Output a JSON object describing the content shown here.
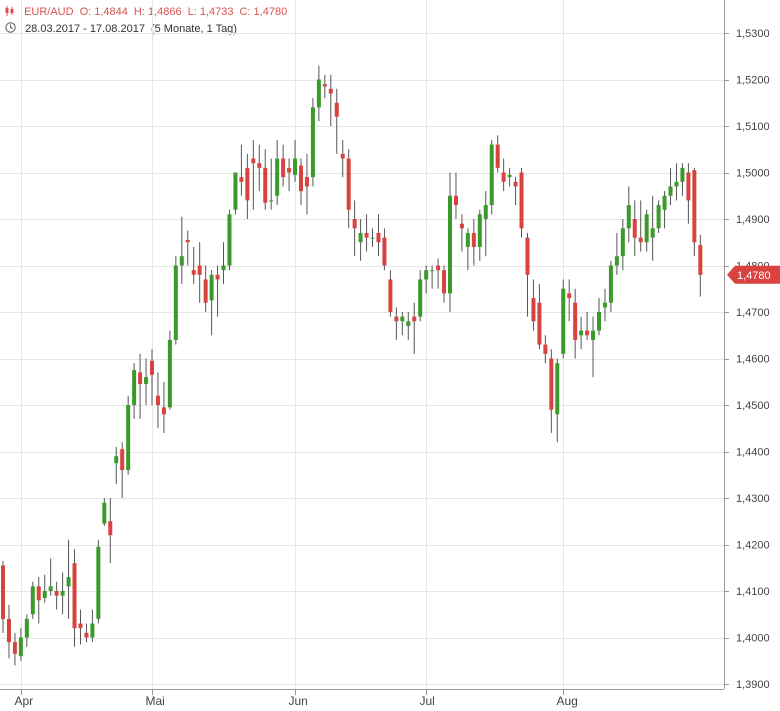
{
  "header": {
    "symbol": "EUR/AUD",
    "open": "O: 1,4844",
    "high": "H: 1,4866",
    "low": "L: 1,4733",
    "close": "C: 1,4780",
    "range": "28.03.2017 - 17.08.2017",
    "period": "(5 Monate, 1 Tag)"
  },
  "colors": {
    "up": "#3a9a2a",
    "down": "#d9423f",
    "grid": "#e6e6e6",
    "axis": "#999999"
  },
  "chart_data": {
    "type": "candlestick",
    "x_range": [
      "28.03.2017",
      "17.08.2017"
    ],
    "ylim": [
      1.387,
      1.533
    ],
    "y_ticks": [
      1.39,
      1.4,
      1.41,
      1.42,
      1.43,
      1.44,
      1.45,
      1.46,
      1.47,
      1.48,
      1.49,
      1.5,
      1.51,
      1.52,
      1.53
    ],
    "y_tick_labels": [
      "1,3900",
      "1,4000",
      "1,4100",
      "1,4200",
      "1,4300",
      "1,4400",
      "1,4500",
      "1,4600",
      "1,4700",
      "1,4800",
      "1,4900",
      "1,5000",
      "1,5100",
      "1,5200",
      "1,5300"
    ],
    "x_tick_labels": [
      {
        "label": "Apr",
        "index": 3
      },
      {
        "label": "Mai",
        "index": 25
      },
      {
        "label": "Jun",
        "index": 49
      },
      {
        "label": "Jul",
        "index": 71
      },
      {
        "label": "Aug",
        "index": 94
      }
    ],
    "last_value_label": "1,4780",
    "last_value": 1.478,
    "candles": [
      [
        1.4155,
        1.4165,
        1.401,
        1.404
      ],
      [
        1.404,
        1.407,
        1.3955,
        1.399
      ],
      [
        1.399,
        1.401,
        1.394,
        1.3965
      ],
      [
        1.396,
        1.402,
        1.395,
        1.4
      ],
      [
        1.4,
        1.405,
        1.398,
        1.404
      ],
      [
        1.405,
        1.412,
        1.404,
        1.411
      ],
      [
        1.411,
        1.413,
        1.403,
        1.408
      ],
      [
        1.4085,
        1.4135,
        1.4075,
        1.41
      ],
      [
        1.41,
        1.417,
        1.409,
        1.411
      ],
      [
        1.41,
        1.412,
        1.406,
        1.409
      ],
      [
        1.409,
        1.414,
        1.405,
        1.41
      ],
      [
        1.411,
        1.421,
        1.404,
        1.413
      ],
      [
        1.416,
        1.419,
        1.398,
        1.402
      ],
      [
        1.403,
        1.406,
        1.3985,
        1.402
      ],
      [
        1.401,
        1.403,
        1.399,
        1.4
      ],
      [
        1.4,
        1.406,
        1.399,
        1.403
      ],
      [
        1.404,
        1.421,
        1.403,
        1.4195
      ],
      [
        1.4245,
        1.43,
        1.424,
        1.429
      ],
      [
        1.425,
        1.43,
        1.416,
        1.422
      ],
      [
        1.4375,
        1.441,
        1.433,
        1.439
      ],
      [
        1.4405,
        1.442,
        1.43,
        1.436
      ],
      [
        1.436,
        1.452,
        1.435,
        1.45
      ],
      [
        1.45,
        1.459,
        1.447,
        1.4575
      ],
      [
        1.457,
        1.461,
        1.447,
        1.4545
      ],
      [
        1.4545,
        1.46,
        1.45,
        1.456
      ],
      [
        1.4595,
        1.462,
        1.45,
        1.4565
      ],
      [
        1.452,
        1.457,
        1.445,
        1.45
      ],
      [
        1.4495,
        1.455,
        1.444,
        1.448
      ],
      [
        1.4495,
        1.466,
        1.449,
        1.464
      ],
      [
        1.464,
        1.482,
        1.463,
        1.48
      ],
      [
        1.48,
        1.4905,
        1.476,
        1.482
      ],
      [
        1.4855,
        1.4875,
        1.48,
        1.485
      ],
      [
        1.479,
        1.484,
        1.476,
        1.478
      ],
      [
        1.48,
        1.485,
        1.472,
        1.478
      ],
      [
        1.477,
        1.48,
        1.47,
        1.472
      ],
      [
        1.4725,
        1.479,
        1.465,
        1.478
      ],
      [
        1.478,
        1.48,
        1.469,
        1.477
      ],
      [
        1.479,
        1.485,
        1.476,
        1.48
      ],
      [
        1.48,
        1.492,
        1.479,
        1.491
      ],
      [
        1.492,
        1.5,
        1.491,
        1.5
      ],
      [
        1.499,
        1.506,
        1.495,
        1.498
      ],
      [
        1.501,
        1.504,
        1.49,
        1.494
      ],
      [
        1.503,
        1.507,
        1.492,
        1.502
      ],
      [
        1.502,
        1.506,
        1.496,
        1.501
      ],
      [
        1.501,
        1.505,
        1.492,
        1.4935
      ],
      [
        1.494,
        1.503,
        1.492,
        1.494
      ],
      [
        1.495,
        1.507,
        1.493,
        1.503
      ],
      [
        1.503,
        1.506,
        1.497,
        1.499
      ],
      [
        1.501,
        1.503,
        1.496,
        1.5
      ],
      [
        1.4995,
        1.507,
        1.498,
        1.503
      ],
      [
        1.5015,
        1.503,
        1.493,
        1.496
      ],
      [
        1.499,
        1.504,
        1.491,
        1.497
      ],
      [
        1.499,
        1.516,
        1.497,
        1.514
      ],
      [
        1.514,
        1.523,
        1.511,
        1.52
      ],
      [
        1.519,
        1.521,
        1.516,
        1.5185
      ],
      [
        1.518,
        1.521,
        1.51,
        1.517
      ],
      [
        1.515,
        1.518,
        1.504,
        1.512
      ],
      [
        1.504,
        1.507,
        1.499,
        1.503
      ],
      [
        1.503,
        1.505,
        1.488,
        1.492
      ],
      [
        1.49,
        1.494,
        1.482,
        1.488
      ],
      [
        1.485,
        1.49,
        1.481,
        1.487
      ],
      [
        1.487,
        1.491,
        1.483,
        1.486
      ],
      [
        1.486,
        1.488,
        1.484,
        1.486
      ],
      [
        1.487,
        1.491,
        1.482,
        1.485
      ],
      [
        1.486,
        1.488,
        1.479,
        1.48
      ],
      [
        1.477,
        1.479,
        1.469,
        1.47
      ],
      [
        1.469,
        1.471,
        1.464,
        1.468
      ],
      [
        1.468,
        1.47,
        1.465,
        1.469
      ],
      [
        1.467,
        1.47,
        1.464,
        1.468
      ],
      [
        1.469,
        1.472,
        1.461,
        1.468
      ],
      [
        1.469,
        1.479,
        1.468,
        1.477
      ],
      [
        1.477,
        1.48,
        1.474,
        1.479
      ],
      [
        1.479,
        1.48,
        1.475,
        1.479
      ],
      [
        1.48,
        1.4815,
        1.475,
        1.479
      ],
      [
        1.479,
        1.48,
        1.472,
        1.474
      ],
      [
        1.474,
        1.5,
        1.47,
        1.495
      ],
      [
        1.495,
        1.5,
        1.49,
        1.493
      ],
      [
        1.489,
        1.491,
        1.483,
        1.488
      ],
      [
        1.484,
        1.488,
        1.479,
        1.487
      ],
      [
        1.487,
        1.49,
        1.48,
        1.484
      ],
      [
        1.484,
        1.492,
        1.481,
        1.491
      ],
      [
        1.49,
        1.496,
        1.482,
        1.493
      ],
      [
        1.493,
        1.507,
        1.491,
        1.506
      ],
      [
        1.506,
        1.508,
        1.5,
        1.501
      ],
      [
        1.5,
        1.503,
        1.496,
        1.498
      ],
      [
        1.499,
        1.501,
        1.497,
        1.4995
      ],
      [
        1.498,
        1.499,
        1.493,
        1.497
      ],
      [
        1.5,
        1.501,
        1.486,
        1.488
      ],
      [
        1.486,
        1.487,
        1.469,
        1.478
      ],
      [
        1.473,
        1.477,
        1.466,
        1.468
      ],
      [
        1.472,
        1.476,
        1.462,
        1.463
      ],
      [
        1.463,
        1.465,
        1.459,
        1.461
      ],
      [
        1.46,
        1.462,
        1.444,
        1.449
      ],
      [
        1.448,
        1.46,
        1.442,
        1.459
      ],
      [
        1.461,
        1.477,
        1.46,
        1.475
      ],
      [
        1.474,
        1.477,
        1.468,
        1.473
      ],
      [
        1.472,
        1.475,
        1.46,
        1.464
      ],
      [
        1.465,
        1.469,
        1.462,
        1.466
      ],
      [
        1.466,
        1.47,
        1.464,
        1.465
      ],
      [
        1.464,
        1.469,
        1.456,
        1.466
      ],
      [
        1.466,
        1.473,
        1.465,
        1.47
      ],
      [
        1.471,
        1.475,
        1.468,
        1.472
      ],
      [
        1.472,
        1.481,
        1.47,
        1.48
      ],
      [
        1.48,
        1.487,
        1.478,
        1.482
      ],
      [
        1.482,
        1.49,
        1.479,
        1.488
      ],
      [
        1.488,
        1.497,
        1.485,
        1.493
      ],
      [
        1.49,
        1.494,
        1.482,
        1.486
      ],
      [
        1.486,
        1.494,
        1.483,
        1.485
      ],
      [
        1.485,
        1.492,
        1.483,
        1.491
      ],
      [
        1.486,
        1.495,
        1.481,
        1.488
      ],
      [
        1.488,
        1.494,
        1.487,
        1.493
      ],
      [
        1.492,
        1.496,
        1.488,
        1.495
      ],
      [
        1.495,
        1.501,
        1.493,
        1.497
      ],
      [
        1.497,
        1.502,
        1.494,
        1.498
      ],
      [
        1.498,
        1.502,
        1.495,
        1.501
      ],
      [
        1.5,
        1.502,
        1.489,
        1.494
      ],
      [
        1.5005,
        1.501,
        1.482,
        1.485
      ],
      [
        1.4844,
        1.4866,
        1.4733,
        1.478
      ]
    ]
  }
}
